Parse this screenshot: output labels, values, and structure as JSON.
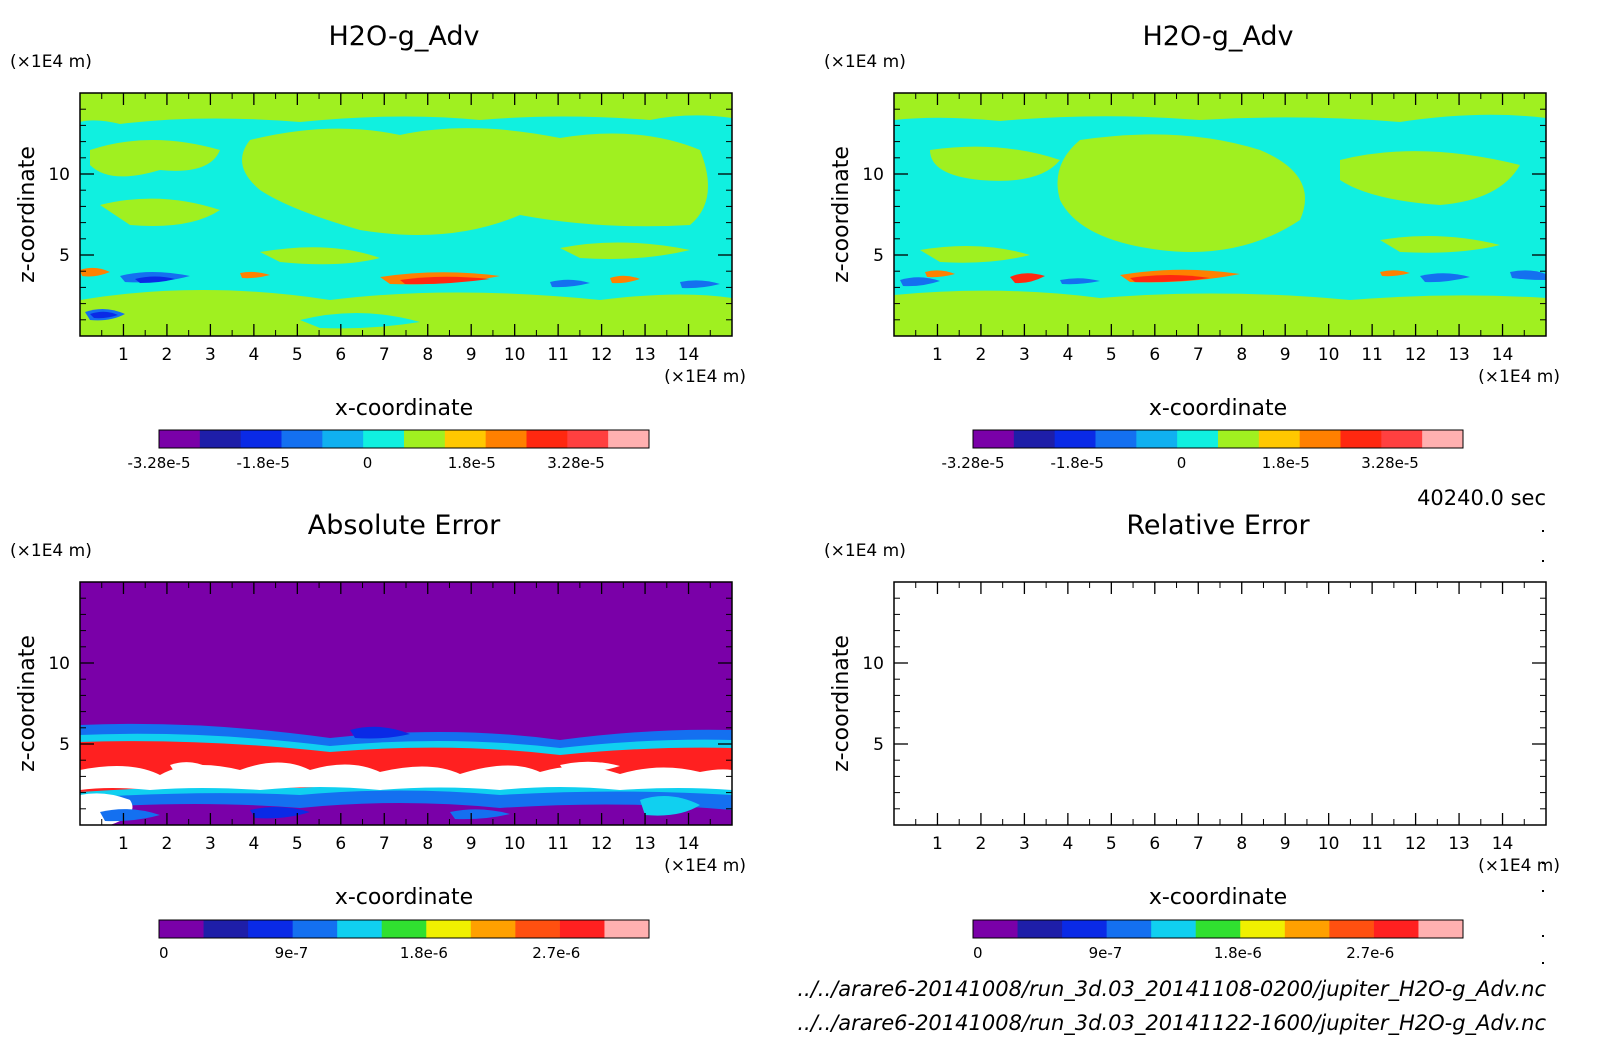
{
  "time_label": "40240.0 sec",
  "files": [
    "../../arare6-20141008/run_3d.03_20141108-0200/jupiter_H2O-g_Adv.nc",
    "../../arare6-20141008/run_3d.03_20141122-1600/jupiter_H2O-g_Adv.nc"
  ],
  "chart_data": [
    {
      "type": "heatmap",
      "title": "H2O-g_Adv",
      "xlabel": "x-coordinate",
      "ylabel": "z-coordinate",
      "x_unit": "(×1E4 m)",
      "y_unit": "(×1E4 m)",
      "xlim": [
        0,
        15
      ],
      "ylim": [
        0,
        15
      ],
      "x_ticks": [
        1,
        2,
        3,
        4,
        5,
        6,
        7,
        8,
        9,
        10,
        11,
        12,
        13,
        14
      ],
      "y_ticks": [
        5,
        10
      ],
      "colorbar": {
        "colors": [
          "#7a00a8",
          "#1e1ea8",
          "#0a2ae6",
          "#1470f0",
          "#10b0f0",
          "#10f0e0",
          "#a0f020",
          "#ffc800",
          "#ff8000",
          "#ff2810",
          "#ff4040",
          "#ffb0b0"
        ],
        "tick_labels": [
          "-3.28e-5",
          "-1.8e-5",
          "0",
          "1.8e-5",
          "3.28e-5"
        ]
      },
      "description_of_field": "mostly near-zero values (cyan/lime bands) with small positive (orange/red) and negative (blue) patches near z=3-4"
    },
    {
      "type": "heatmap",
      "title": "H2O-g_Adv",
      "xlabel": "x-coordinate",
      "ylabel": "z-coordinate",
      "x_unit": "(×1E4 m)",
      "y_unit": "(×1E4 m)",
      "xlim": [
        0,
        15
      ],
      "ylim": [
        0,
        15
      ],
      "x_ticks": [
        1,
        2,
        3,
        4,
        5,
        6,
        7,
        8,
        9,
        10,
        11,
        12,
        13,
        14
      ],
      "y_ticks": [
        5,
        10
      ],
      "colorbar": {
        "colors": [
          "#7a00a8",
          "#1e1ea8",
          "#0a2ae6",
          "#1470f0",
          "#10b0f0",
          "#10f0e0",
          "#a0f020",
          "#ffc800",
          "#ff8000",
          "#ff2810",
          "#ff4040",
          "#ffb0b0"
        ],
        "tick_labels": [
          "-3.28e-5",
          "-1.8e-5",
          "0",
          "1.8e-5",
          "3.28e-5"
        ]
      }
    },
    {
      "type": "heatmap",
      "title": "Absolute Error",
      "xlabel": "x-coordinate",
      "ylabel": "z-coordinate",
      "x_unit": "(×1E4 m)",
      "y_unit": "(×1E4 m)",
      "xlim": [
        0,
        15
      ],
      "ylim": [
        0,
        15
      ],
      "x_ticks": [
        1,
        2,
        3,
        4,
        5,
        6,
        7,
        8,
        9,
        10,
        11,
        12,
        13,
        14
      ],
      "y_ticks": [
        5,
        10
      ],
      "colorbar": {
        "colors": [
          "#7a00a8",
          "#1e1ea8",
          "#0a2ae6",
          "#1470f0",
          "#10d0f0",
          "#30e030",
          "#f0f000",
          "#ffa000",
          "#ff5010",
          "#ff2020",
          "#ffb0b0"
        ],
        "tick_labels": [
          "0",
          "9e-7",
          "1.8e-6",
          "2.7e-6"
        ]
      }
    },
    {
      "type": "heatmap",
      "title": "Relative Error",
      "xlabel": "x-coordinate",
      "ylabel": "z-coordinate",
      "x_unit": "(×1E4 m)",
      "y_unit": "(×1E4 m)",
      "xlim": [
        0,
        15
      ],
      "ylim": [
        0,
        15
      ],
      "x_ticks": [
        1,
        2,
        3,
        4,
        5,
        6,
        7,
        8,
        9,
        10,
        11,
        12,
        13,
        14
      ],
      "y_ticks": [
        5,
        10
      ],
      "colorbar": {
        "colors": [
          "#7a00a8",
          "#1e1ea8",
          "#0a2ae6",
          "#1470f0",
          "#10d0f0",
          "#30e030",
          "#f0f000",
          "#ffa000",
          "#ff5010",
          "#ff2020",
          "#ffb0b0"
        ],
        "tick_labels": [
          "0",
          "9e-7",
          "1.8e-6",
          "2.7e-6"
        ]
      }
    }
  ]
}
